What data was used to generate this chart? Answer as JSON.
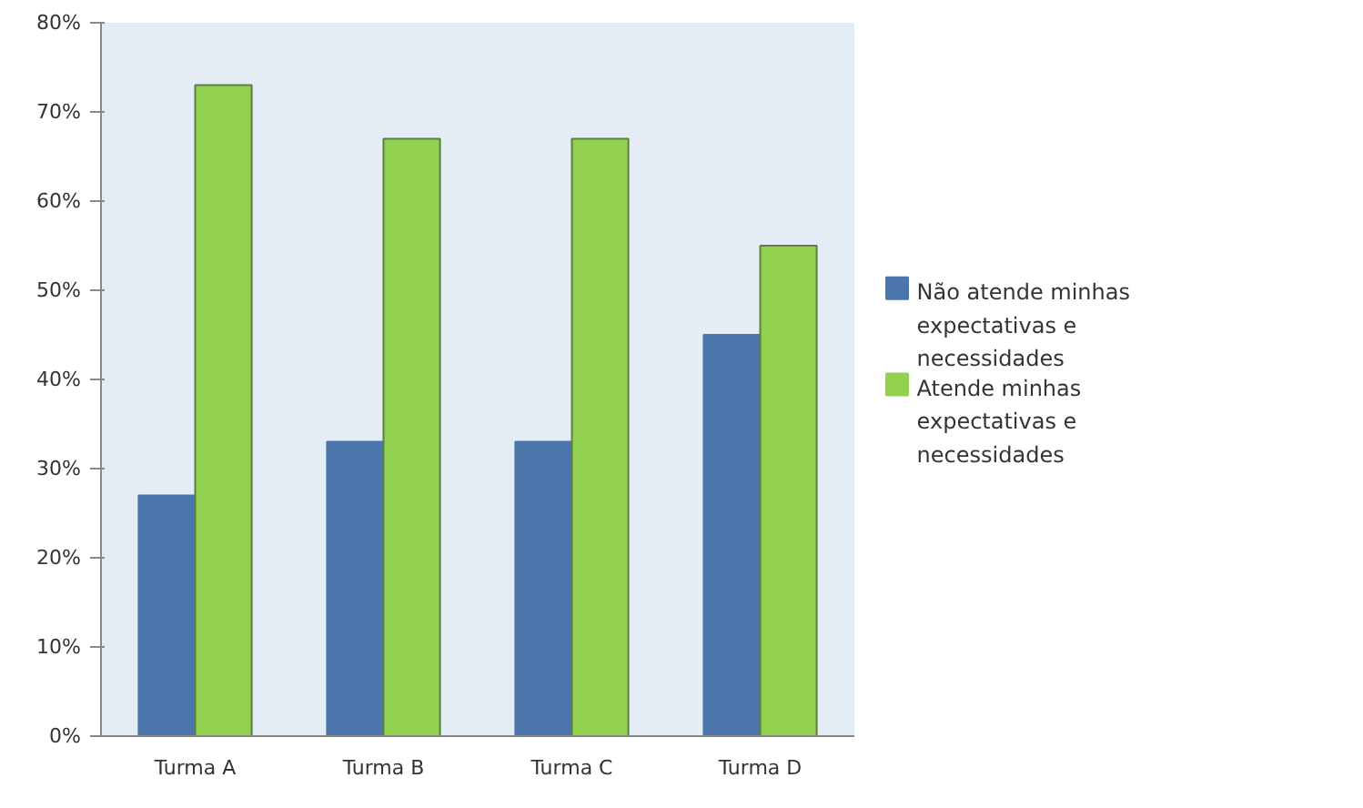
{
  "chart_data": {
    "type": "bar",
    "categories": [
      "Turma A",
      "Turma B",
      "Turma C",
      "Turma D"
    ],
    "series": [
      {
        "name": "Não atende minhas expectativas e necessidades",
        "color": "#4a76ab",
        "values": [
          27,
          33,
          33,
          45
        ]
      },
      {
        "name": "Atende minhas expectativas e necessidades",
        "color": "#92d050",
        "values": [
          73,
          67,
          67,
          55
        ]
      }
    ],
    "ylim": [
      0,
      80
    ],
    "yticks": [
      {
        "value": 0,
        "label": "0%"
      },
      {
        "value": 10,
        "label": "10%"
      },
      {
        "value": 20,
        "label": "20%"
      },
      {
        "value": 30,
        "label": "30%"
      },
      {
        "value": 40,
        "label": "40%"
      },
      {
        "value": 50,
        "label": "50%"
      },
      {
        "value": 60,
        "label": "60%"
      },
      {
        "value": 70,
        "label": "70%"
      },
      {
        "value": 80,
        "label": "80%"
      }
    ],
    "grid": false,
    "legend": "right"
  }
}
